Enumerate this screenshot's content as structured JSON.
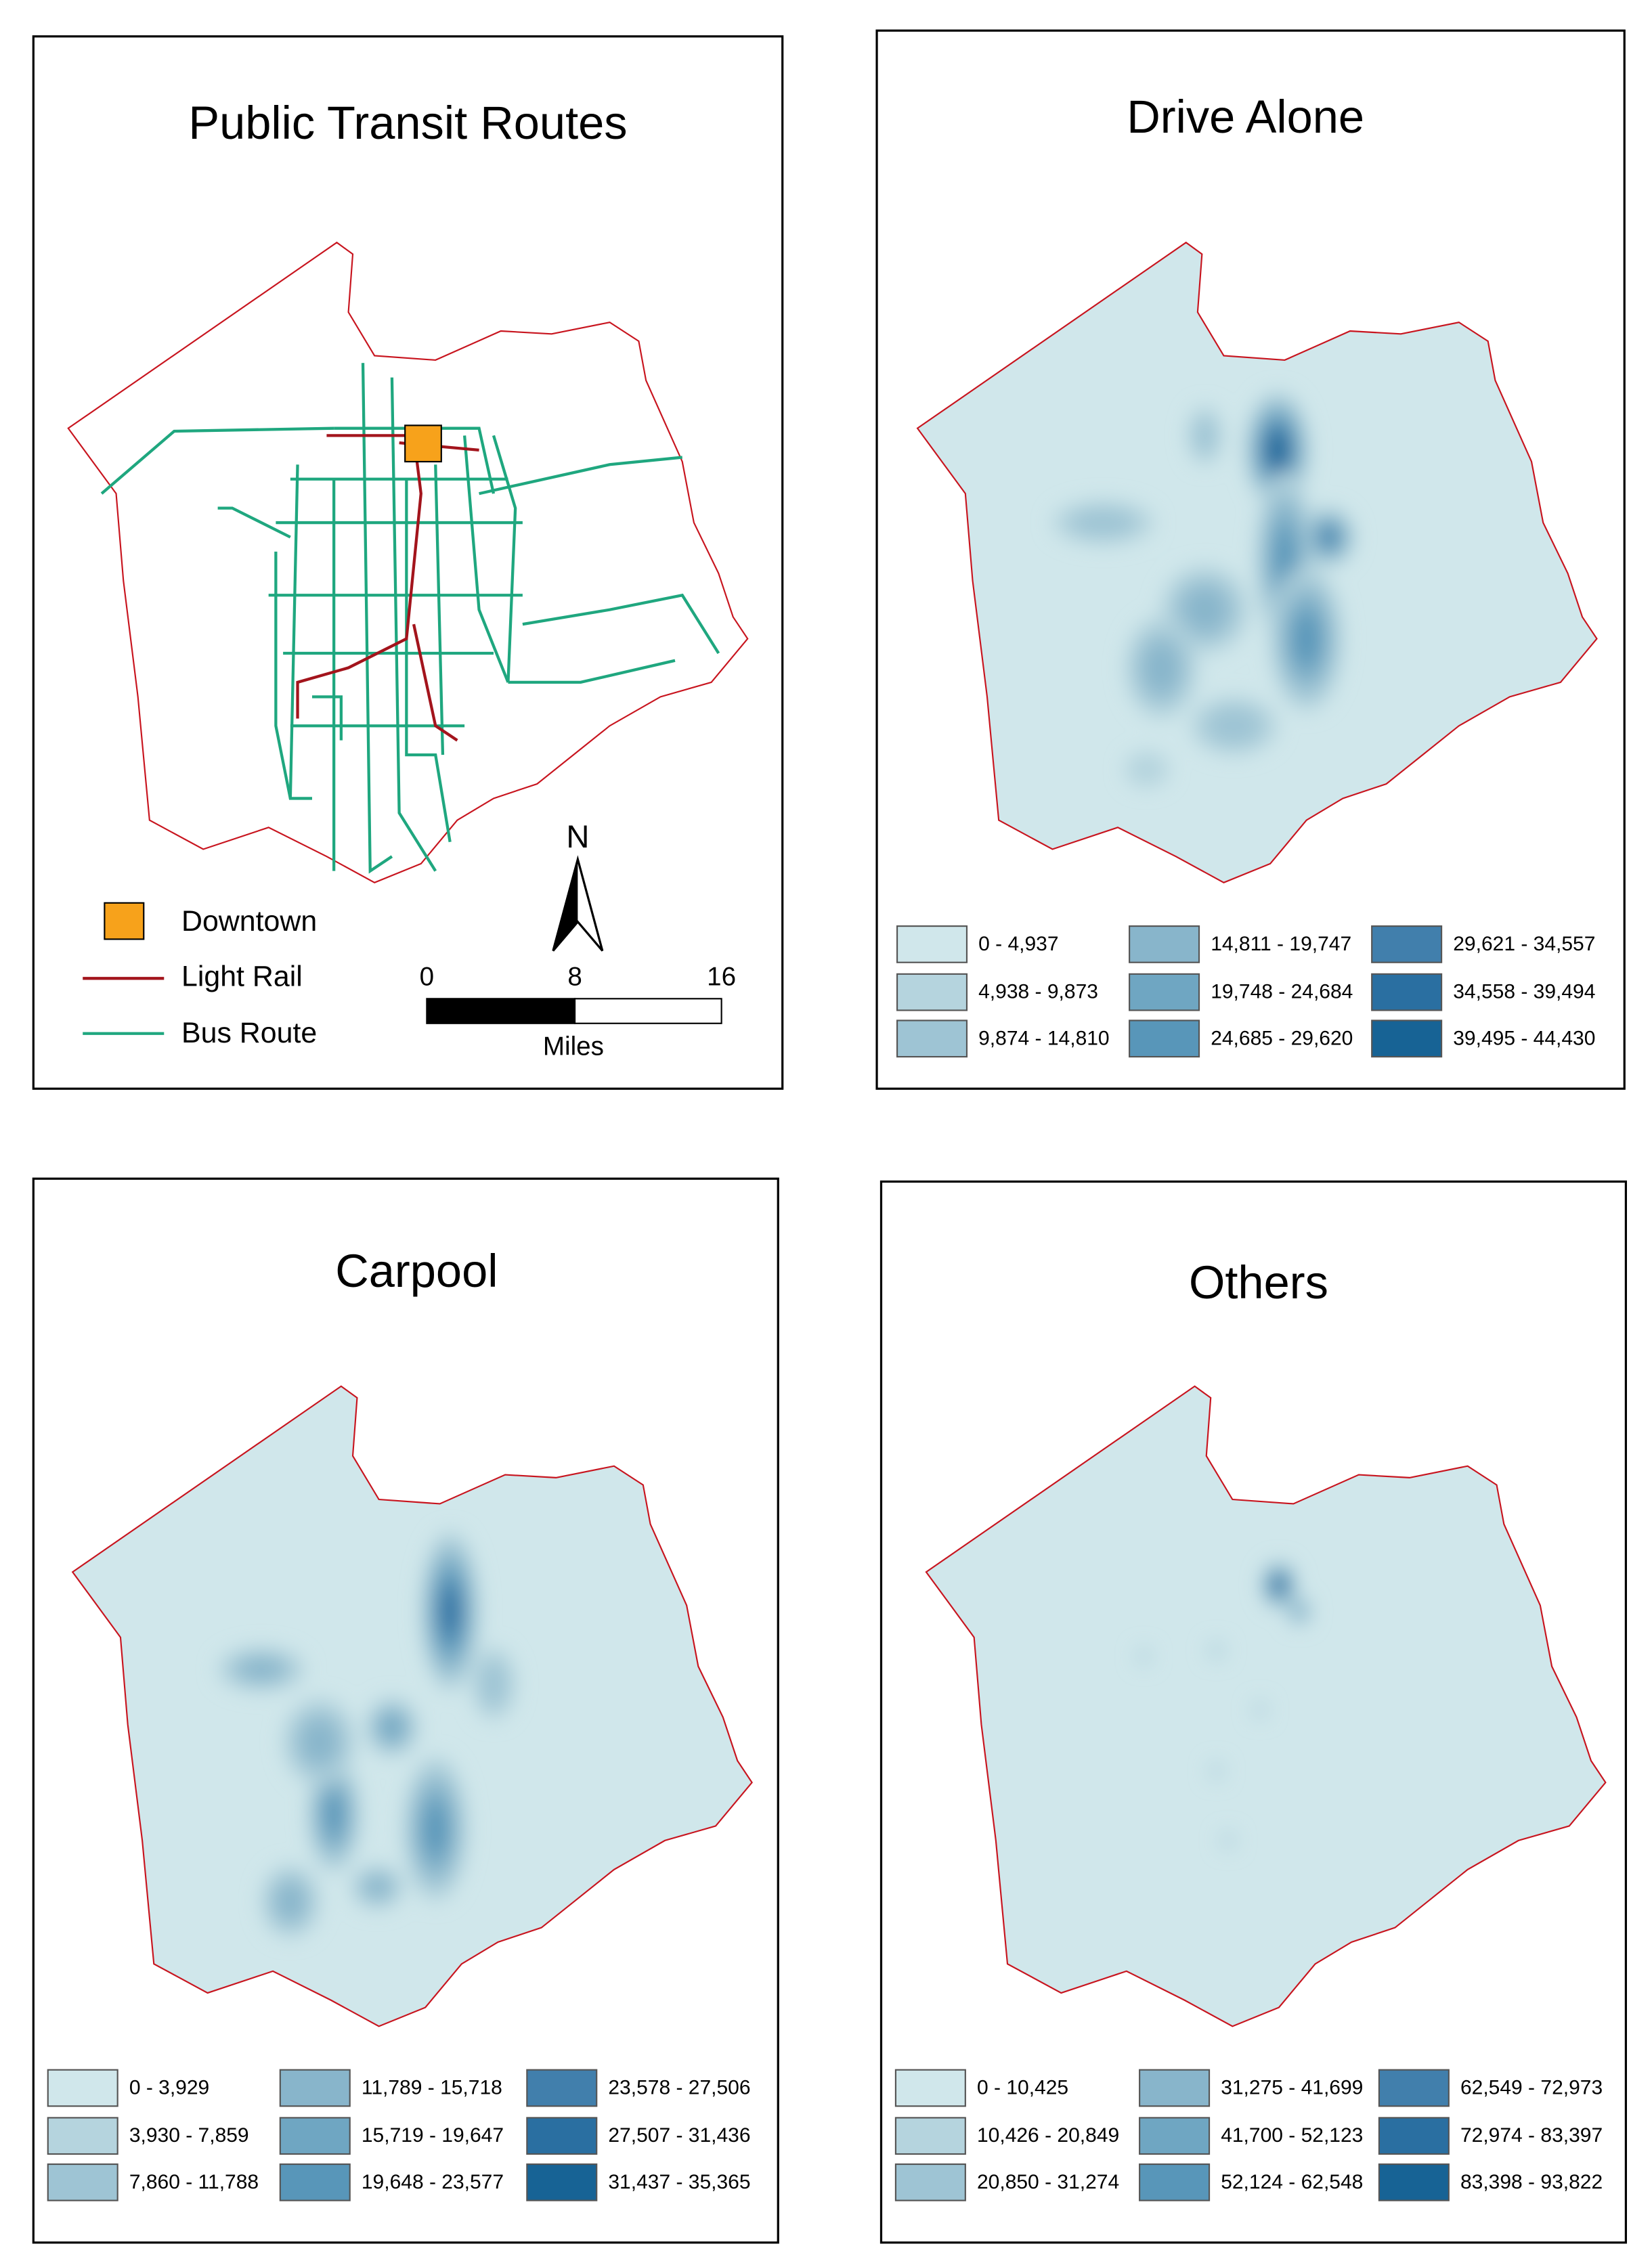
{
  "panels": [
    {
      "title": "Public Transit Routes",
      "legend": [
        "Downtown",
        "Light Rail",
        "Bus Route"
      ],
      "legend_colors": [
        "#f7a21b",
        "#a3141c",
        "#1fa77f"
      ],
      "north": "N",
      "scale": {
        "ticks": [
          "0",
          "8",
          "16"
        ],
        "unit": "Miles"
      }
    },
    {
      "title": "Drive Alone",
      "classes": [
        "0 - 4,937",
        "4,938 - 9,873",
        "9,874 - 14,810",
        "14,811 - 19,747",
        "19,748 - 24,684",
        "24,685 - 29,620",
        "29,621 - 34,557",
        "34,558 - 39,494",
        "39,495 - 44,430"
      ]
    },
    {
      "title": "Carpool",
      "classes": [
        "0 - 3,929",
        "3,930 - 7,859",
        "7,860 - 11,788",
        "11,789 - 15,718",
        "15,719 - 19,647",
        "19,648 - 23,577",
        "23,578 - 27,506",
        "27,507 - 31,436",
        "31,437 - 35,365"
      ]
    },
    {
      "title": "Others",
      "classes": [
        "0 - 10,425",
        "10,426 - 20,849",
        "20,850 - 31,274",
        "31,275 - 41,699",
        "41,700 - 52,123",
        "52,124 - 62,548",
        "62,549 - 72,973",
        "72,974 - 83,397",
        "83,398 - 93,822"
      ]
    }
  ],
  "class_colors": [
    "#d0e7eb",
    "#b5d4de",
    "#9ec4d4",
    "#88b5cb",
    "#6fa6c2",
    "#5896b9",
    "#417fac",
    "#2a6fa1",
    "#176395"
  ]
}
